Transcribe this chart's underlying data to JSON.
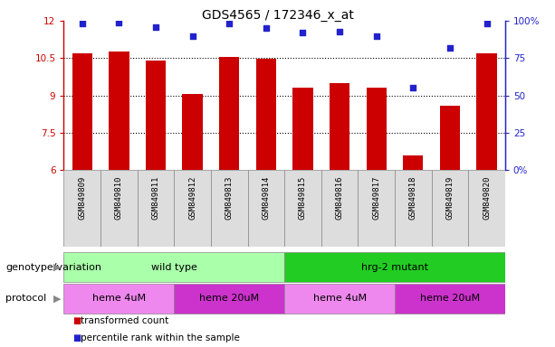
{
  "title": "GDS4565 / 172346_x_at",
  "samples": [
    "GSM849809",
    "GSM849810",
    "GSM849811",
    "GSM849812",
    "GSM849813",
    "GSM849814",
    "GSM849815",
    "GSM849816",
    "GSM849817",
    "GSM849818",
    "GSM849819",
    "GSM849820"
  ],
  "bar_values": [
    10.7,
    10.75,
    10.4,
    9.05,
    10.55,
    10.48,
    9.3,
    9.5,
    9.3,
    6.6,
    8.6,
    10.7
  ],
  "dot_values": [
    98,
    99,
    96,
    90,
    98,
    95,
    92,
    93,
    90,
    55,
    82,
    98
  ],
  "ylim_left": [
    6,
    12
  ],
  "ylim_right": [
    0,
    100
  ],
  "yticks_left": [
    6,
    7.5,
    9,
    10.5,
    12
  ],
  "ytick_labels_left": [
    "6",
    "7.5",
    "9",
    "10.5",
    "12"
  ],
  "yticks_right": [
    0,
    25,
    50,
    75,
    100
  ],
  "ytick_labels_right": [
    "0%",
    "25",
    "50",
    "75",
    "100%"
  ],
  "bar_color": "#cc0000",
  "dot_color": "#2222cc",
  "bar_width": 0.55,
  "genotype_variation": [
    {
      "label": "wild type",
      "start": 0,
      "end": 6,
      "color": "#aaffaa"
    },
    {
      "label": "hrg-2 mutant",
      "start": 6,
      "end": 12,
      "color": "#22cc22"
    }
  ],
  "protocol": [
    {
      "label": "heme 4uM",
      "start": 0,
      "end": 3,
      "color": "#ee88ee"
    },
    {
      "label": "heme 20uM",
      "start": 3,
      "end": 6,
      "color": "#cc33cc"
    },
    {
      "label": "heme 4uM",
      "start": 6,
      "end": 9,
      "color": "#ee88ee"
    },
    {
      "label": "heme 20uM",
      "start": 9,
      "end": 12,
      "color": "#cc33cc"
    }
  ],
  "background_color": "#ffffff",
  "plot_bg_color": "#ffffff",
  "xtick_bg_color": "#dddddd",
  "title_fontsize": 10,
  "tick_fontsize": 7.5,
  "xtick_fontsize": 6.5,
  "label_fontsize": 8,
  "row_label_fontsize": 8,
  "legend_fontsize": 7.5
}
